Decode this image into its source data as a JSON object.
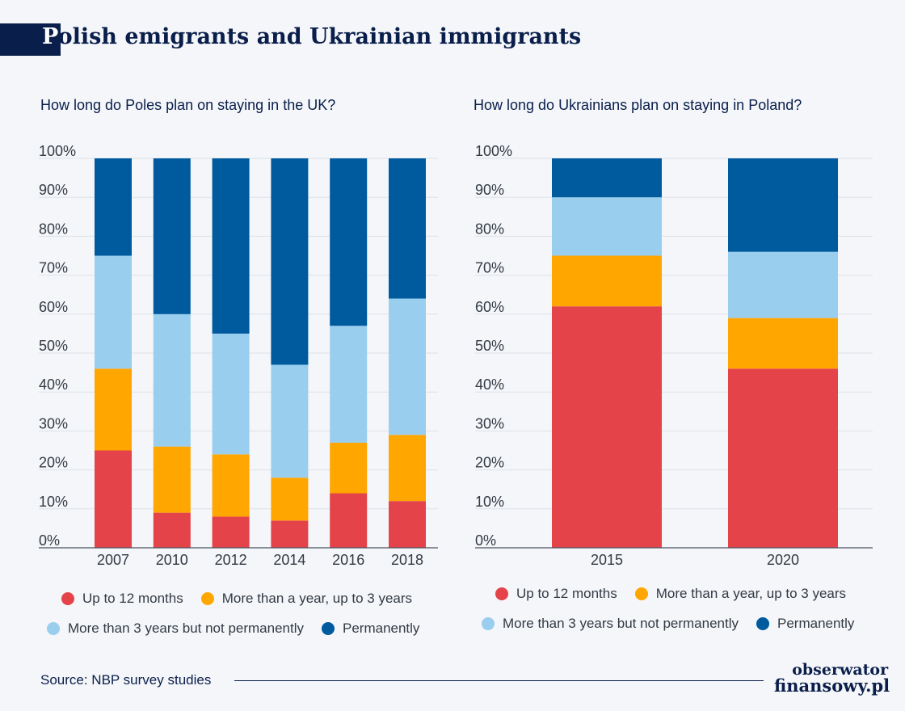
{
  "header": {
    "title_first": "P",
    "title_rest": "olish emigrants and Ukrainian immigrants"
  },
  "footer": {
    "source": "Source: NBP survey studies",
    "logo_line1": "obserwator",
    "logo_line2": "finansowy.pl"
  },
  "legend": {
    "up_to_12": "Up to 12 months",
    "one_to_3": "More than a year, up to 3 years",
    "over_3": "More than 3 years but not permanently",
    "permanent": "Permanently"
  },
  "colors": {
    "up_to_12": "#e5434a",
    "one_to_3": "#ffa600",
    "over_3": "#99ceef",
    "permanent": "#005a9e"
  },
  "chart_data": [
    {
      "type": "bar",
      "stacked": true,
      "title": "How long do Poles plan on staying in the UK?",
      "categories": [
        "2007",
        "2010",
        "2012",
        "2014",
        "2016",
        "2018"
      ],
      "series": [
        {
          "name": "Up to 12 months",
          "values": [
            25,
            9,
            8,
            7,
            14,
            12
          ]
        },
        {
          "name": "More than a year, up to 3 years",
          "values": [
            21,
            17,
            16,
            11,
            13,
            17
          ]
        },
        {
          "name": "More than 3 years but not permanently",
          "values": [
            29,
            34,
            31,
            29,
            30,
            35
          ]
        },
        {
          "name": "Permanently",
          "values": [
            25,
            40,
            45,
            53,
            43,
            36
          ]
        }
      ],
      "yticks": [
        "0%",
        "10%",
        "20%",
        "30%",
        "40%",
        "50%",
        "60%",
        "70%",
        "80%",
        "90%",
        "100%"
      ],
      "ylim": [
        0,
        100
      ],
      "grid": true,
      "legend_position": "bottom"
    },
    {
      "type": "bar",
      "stacked": true,
      "title": "How long do Ukrainians plan on staying in Poland?",
      "categories": [
        "2015",
        "2020"
      ],
      "series": [
        {
          "name": "Up to 12 months",
          "values": [
            62,
            46
          ]
        },
        {
          "name": "More than a year, up to 3 years",
          "values": [
            13,
            13
          ]
        },
        {
          "name": "More than 3 years but not permanently",
          "values": [
            15,
            17
          ]
        },
        {
          "name": "Permanently",
          "values": [
            10,
            24
          ]
        }
      ],
      "yticks": [
        "0%",
        "10%",
        "20%",
        "30%",
        "40%",
        "50%",
        "60%",
        "70%",
        "80%",
        "90%",
        "100%"
      ],
      "ylim": [
        0,
        100
      ],
      "grid": true,
      "legend_position": "bottom"
    }
  ]
}
